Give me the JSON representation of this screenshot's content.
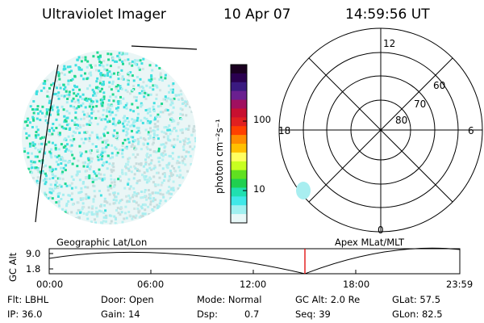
{
  "header": {
    "instrument": "Ultraviolet Imager",
    "date": "10 Apr 07",
    "time": "14:59:56 UT"
  },
  "colorbar": {
    "unit_label": "photon cm⁻²s⁻¹",
    "ticks": [
      "100",
      "10"
    ],
    "colors": [
      "#1a0020",
      "#2a0050",
      "#3a1a80",
      "#6a2090",
      "#a01060",
      "#c81030",
      "#e02020",
      "#ff4000",
      "#ff8c00",
      "#ffc000",
      "#ffff60",
      "#c8ff20",
      "#60e020",
      "#20d050",
      "#20e0b0",
      "#40e8e8",
      "#a0f0f0",
      "#e8f8f8"
    ]
  },
  "polar": {
    "lat_labels": [
      "60",
      "70",
      "80"
    ],
    "mlt_labels": [
      "12",
      "18",
      "6",
      "0"
    ]
  },
  "timeline": {
    "ylabel": "GC Alt",
    "y_ticks": [
      "9.0",
      "1.8"
    ],
    "left_label": "Geographic Lat/Lon",
    "right_label": "Apex MLat/MLT",
    "x_ticks": [
      "00:00",
      "06:00",
      "12:00",
      "18:00",
      "23:59"
    ]
  },
  "status": {
    "flt": "Flt: LBHL",
    "ip": "IP: 36.0",
    "door": "Door: Open",
    "gain": "Gain: 14",
    "mode": "Mode: Normal",
    "dsp_label": "Dsp:",
    "dsp_value": "0.7",
    "gcalt": "GC Alt: 2.0 Re",
    "seq": "Seq: 39",
    "glat": "GLat:  57.5",
    "glon": "GLon:  82.5"
  }
}
